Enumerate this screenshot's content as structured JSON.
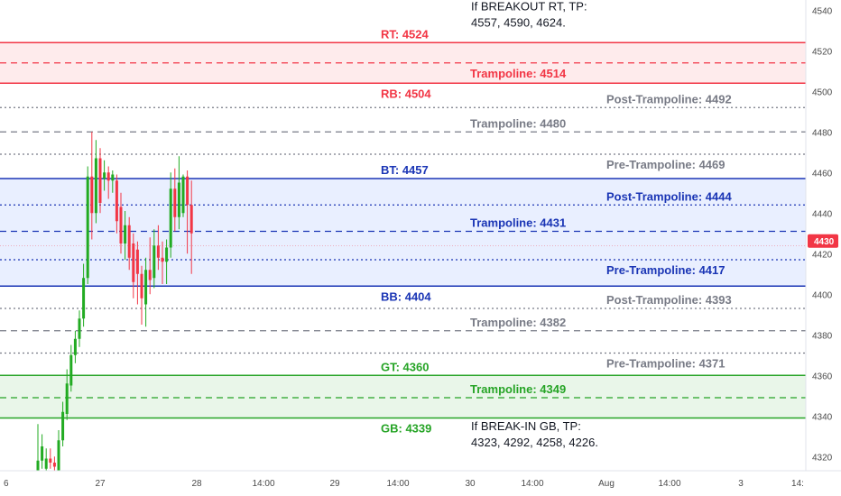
{
  "chart_data": {
    "type": "candlestick",
    "ylim": [
      4313,
      4545
    ],
    "y_ticks": [
      4320,
      4340,
      4360,
      4380,
      4400,
      4420,
      4440,
      4460,
      4480,
      4500,
      4520,
      4540
    ],
    "x_ticks": [
      "6",
      "27",
      "28",
      "14:00",
      "29",
      "14:00",
      "30",
      "14:00",
      "Aug",
      "14:00",
      "3",
      "14:"
    ],
    "current_price": {
      "label": "4430",
      "value": 4430,
      "color": "#f23645"
    },
    "zones": [
      {
        "from": 4504,
        "to": 4524,
        "color": "#f23645"
      },
      {
        "from": 4404,
        "to": 4457,
        "color": "#2962ff"
      },
      {
        "from": 4339,
        "to": 4360,
        "color": "#26a426"
      }
    ],
    "levels": [
      {
        "value": 4524,
        "style": "solid",
        "color": "#f23645",
        "label": "RT: 4524",
        "label_pos": "left"
      },
      {
        "value": 4514,
        "style": "dashed",
        "color": "#f23645",
        "label": "Trampoline: 4514",
        "label_pos": "mid-below"
      },
      {
        "value": 4504,
        "style": "solid",
        "color": "#f23645",
        "label": "RB: 4504",
        "label_pos": "left-below"
      },
      {
        "value": 4492,
        "style": "dotted",
        "color": "#787b86",
        "label": "Post-Trampoline: 4492",
        "label_pos": "right"
      },
      {
        "value": 4480,
        "style": "dashed",
        "color": "#787b86",
        "label": "Trampoline: 4480",
        "label_pos": "mid"
      },
      {
        "value": 4469,
        "style": "dotted",
        "color": "#787b86",
        "label": "Pre-Trampoline: 4469",
        "label_pos": "right-below"
      },
      {
        "value": 4457,
        "style": "solid",
        "color": "#1a35b5",
        "label": "BT: 4457",
        "label_pos": "left"
      },
      {
        "value": 4444,
        "style": "dotted",
        "color": "#1a35b5",
        "label": "Post-Trampoline: 4444",
        "label_pos": "right"
      },
      {
        "value": 4431,
        "style": "dashed",
        "color": "#1a35b5",
        "label": "Trampoline: 4431",
        "label_pos": "mid"
      },
      {
        "value": 4417,
        "style": "dotted",
        "color": "#1a35b5",
        "label": "Pre-Trampoline: 4417",
        "label_pos": "right-below"
      },
      {
        "value": 4404,
        "style": "solid",
        "color": "#1a35b5",
        "label": "BB: 4404",
        "label_pos": "left-below"
      },
      {
        "value": 4393,
        "style": "dotted",
        "color": "#787b86",
        "label": "Post-Trampoline: 4393",
        "label_pos": "right"
      },
      {
        "value": 4382,
        "style": "dashed",
        "color": "#787b86",
        "label": "Trampoline: 4382",
        "label_pos": "mid"
      },
      {
        "value": 4371,
        "style": "dotted",
        "color": "#787b86",
        "label": "Pre-Trampoline: 4371",
        "label_pos": "right-below"
      },
      {
        "value": 4360,
        "style": "solid",
        "color": "#26a426",
        "label": "GT: 4360",
        "label_pos": "left"
      },
      {
        "value": 4349,
        "style": "dashed",
        "color": "#26a426",
        "label": "Trampoline: 4349",
        "label_pos": "mid"
      },
      {
        "value": 4339,
        "style": "solid",
        "color": "#26a426",
        "label": "GB: 4339",
        "label_pos": "left-below"
      }
    ],
    "candles": [
      {
        "o": 4313,
        "h": 4336,
        "l": 4313,
        "c": 4318
      },
      {
        "o": 4318,
        "h": 4331,
        "l": 4314,
        "c": 4325
      },
      {
        "o": 4314,
        "h": 4324,
        "l": 4313,
        "c": 4319
      },
      {
        "o": 4319,
        "h": 4324,
        "l": 4314,
        "c": 4317
      },
      {
        "o": 4317,
        "h": 4320,
        "l": 4313,
        "c": 4315
      },
      {
        "o": 4313,
        "h": 4333,
        "l": 4313,
        "c": 4328
      },
      {
        "o": 4328,
        "h": 4347,
        "l": 4325,
        "c": 4342
      },
      {
        "o": 4341,
        "h": 4363,
        "l": 4338,
        "c": 4356
      },
      {
        "o": 4355,
        "h": 4375,
        "l": 4352,
        "c": 4370
      },
      {
        "o": 4370,
        "h": 4382,
        "l": 4366,
        "c": 4378
      },
      {
        "o": 4378,
        "h": 4392,
        "l": 4374,
        "c": 4388
      },
      {
        "o": 4388,
        "h": 4415,
        "l": 4384,
        "c": 4408
      },
      {
        "o": 4408,
        "h": 4463,
        "l": 4405,
        "c": 4458
      },
      {
        "o": 4458,
        "h": 4480,
        "l": 4427,
        "c": 4440
      },
      {
        "o": 4440,
        "h": 4476,
        "l": 4435,
        "c": 4467
      },
      {
        "o": 4467,
        "h": 4472,
        "l": 4440,
        "c": 4445
      },
      {
        "o": 4457,
        "h": 4466,
        "l": 4451,
        "c": 4460
      },
      {
        "o": 4460,
        "h": 4463,
        "l": 4447,
        "c": 4456
      },
      {
        "o": 4456,
        "h": 4461,
        "l": 4450,
        "c": 4459
      },
      {
        "o": 4456,
        "h": 4459,
        "l": 4430,
        "c": 4436
      },
      {
        "o": 4443,
        "h": 4450,
        "l": 4420,
        "c": 4425
      },
      {
        "o": 4425,
        "h": 4441,
        "l": 4417,
        "c": 4434
      },
      {
        "o": 4434,
        "h": 4438,
        "l": 4412,
        "c": 4418
      },
      {
        "o": 4425,
        "h": 4430,
        "l": 4398,
        "c": 4406
      },
      {
        "o": 4422,
        "h": 4426,
        "l": 4395,
        "c": 4410
      },
      {
        "o": 4410,
        "h": 4414,
        "l": 4385,
        "c": 4398
      },
      {
        "o": 4395,
        "h": 4418,
        "l": 4384,
        "c": 4412
      },
      {
        "o": 4412,
        "h": 4428,
        "l": 4400,
        "c": 4407
      },
      {
        "o": 4408,
        "h": 4432,
        "l": 4403,
        "c": 4424
      },
      {
        "o": 4424,
        "h": 4434,
        "l": 4412,
        "c": 4418
      },
      {
        "o": 4418,
        "h": 4426,
        "l": 4405,
        "c": 4416
      },
      {
        "o": 4416,
        "h": 4427,
        "l": 4405,
        "c": 4423
      },
      {
        "o": 4423,
        "h": 4460,
        "l": 4418,
        "c": 4452
      },
      {
        "o": 4452,
        "h": 4462,
        "l": 4431,
        "c": 4438
      },
      {
        "o": 4438,
        "h": 4468,
        "l": 4432,
        "c": 4455
      },
      {
        "o": 4440,
        "h": 4459,
        "l": 4438,
        "c": 4458
      },
      {
        "o": 4458,
        "h": 4461,
        "l": 4420,
        "c": 4444
      },
      {
        "o": 4444,
        "h": 4456,
        "l": 4410,
        "c": 4430
      }
    ],
    "annotations": [
      {
        "lines": [
          "If BREAKOUT RT, TP:",
          "4557, 4590, 4624."
        ],
        "anchor_value": 4540
      },
      {
        "lines": [
          "If BREAK-IN GB, TP:",
          "4323, 4292, 4258, 4226."
        ],
        "anchor_value": 4333
      }
    ]
  }
}
